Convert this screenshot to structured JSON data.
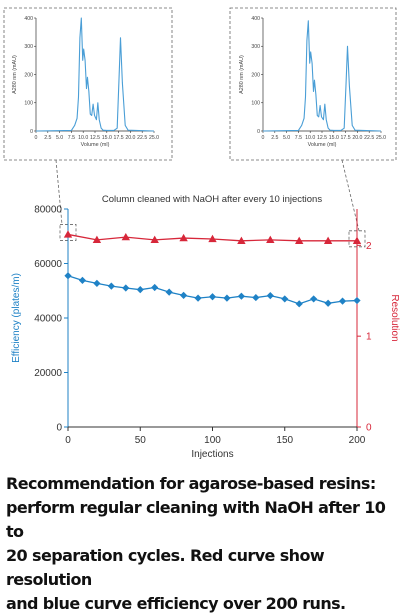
{
  "chart_data": [
    {
      "type": "line",
      "title": "",
      "xlabel": "Volume (ml)",
      "ylabel": "A280 nm (mAU)",
      "xlim": [
        0,
        25
      ],
      "ylim": [
        0,
        400
      ],
      "x_ticks": [
        "0",
        "2.5",
        "5.0",
        "7.5",
        "10.0",
        "12.5",
        "15.0",
        "17.5",
        "20.0",
        "22.5",
        "25.0"
      ],
      "y_ticks": [
        "0",
        "100",
        "200",
        "300",
        "400"
      ],
      "series": [
        {
          "color": "#4a9ed6",
          "x": [
            0,
            7.5,
            8.2,
            8.7,
            9.0,
            9.3,
            9.6,
            9.9,
            10.1,
            10.4,
            10.7,
            10.9,
            11.2,
            11.5,
            11.8,
            12.1,
            12.4,
            12.8,
            13.1,
            13.4,
            13.8,
            14.2,
            15.0,
            16.5,
            17.2,
            17.6,
            17.9,
            18.3,
            18.9,
            19.5,
            25
          ],
          "y": [
            0,
            2,
            20,
            45,
            120,
            330,
            400,
            250,
            290,
            250,
            150,
            190,
            140,
            60,
            55,
            95,
            55,
            40,
            100,
            40,
            10,
            3,
            2,
            2,
            10,
            190,
            330,
            170,
            20,
            3,
            0
          ]
        }
      ]
    },
    {
      "type": "line",
      "title": "",
      "xlabel": "Volume (ml)",
      "ylabel": "A280 nm (mAU)",
      "xlim": [
        0,
        25
      ],
      "ylim": [
        0,
        400
      ],
      "x_ticks": [
        "0",
        "2.5",
        "5.0",
        "7.5",
        "10.0",
        "12.5",
        "15.0",
        "17.5",
        "20.0",
        "22.5",
        "25.0"
      ],
      "y_ticks": [
        "0",
        "100",
        "200",
        "300",
        "400"
      ],
      "series": [
        {
          "color": "#4a9ed6",
          "x": [
            0,
            7.5,
            8.2,
            8.7,
            9.0,
            9.3,
            9.6,
            9.9,
            10.1,
            10.4,
            10.7,
            10.9,
            11.2,
            11.5,
            11.8,
            12.1,
            12.4,
            12.8,
            13.1,
            13.4,
            13.8,
            14.2,
            15.0,
            16.5,
            17.2,
            17.6,
            17.9,
            18.3,
            18.9,
            19.5,
            25
          ],
          "y": [
            0,
            2,
            20,
            45,
            120,
            320,
            390,
            240,
            280,
            240,
            140,
            180,
            130,
            55,
            50,
            90,
            50,
            40,
            95,
            40,
            10,
            3,
            2,
            2,
            10,
            170,
            300,
            160,
            20,
            3,
            0
          ]
        }
      ]
    },
    {
      "type": "line",
      "title": "Column cleaned with NaOH after every 10 injections",
      "xlabel": "Injections",
      "ylabel": "Efficiency  (plates/m)",
      "y2label": "Resolution",
      "xlim": [
        0,
        200
      ],
      "ylim": [
        0,
        80000
      ],
      "y2lim": [
        0,
        2.4
      ],
      "x_ticks": [
        "0",
        "50",
        "100",
        "150",
        "200"
      ],
      "y_ticks": [
        "0",
        "20000",
        "40000",
        "60000",
        "80000"
      ],
      "y2_ticks": [
        "0",
        "1",
        "2"
      ],
      "grid": false,
      "series": [
        {
          "name": "Efficiency",
          "axis": "left",
          "color": "#1f82c6",
          "marker": "diamond",
          "x": [
            0,
            10,
            20,
            30,
            40,
            50,
            60,
            70,
            80,
            90,
            100,
            110,
            120,
            130,
            140,
            150,
            160,
            170,
            180,
            190,
            200
          ],
          "y": [
            55500,
            53800,
            52700,
            51700,
            51000,
            50400,
            51200,
            49500,
            48300,
            47300,
            47800,
            47300,
            48000,
            47500,
            48200,
            47000,
            45200,
            47000,
            45400,
            46200,
            46400
          ]
        },
        {
          "name": "Resolution",
          "axis": "right",
          "color": "#d7273a",
          "marker": "triangle",
          "x": [
            0,
            20,
            40,
            60,
            80,
            100,
            120,
            140,
            160,
            180,
            200
          ],
          "y": [
            2.12,
            2.06,
            2.09,
            2.06,
            2.08,
            2.07,
            2.05,
            2.06,
            2.05,
            2.05,
            2.05
          ]
        }
      ]
    }
  ],
  "caption": [
    "Recommendation for agarose-based resins:",
    "perform regular cleaning with NaOH after 10 to",
    "20 separation cycles. Red curve show resolution",
    "and blue curve efficiency over 200 runs."
  ],
  "colors": {
    "axis_left": "#1f82c6",
    "axis_right": "#d7273a",
    "inset": "#4a9ed6",
    "gray": "#666666"
  }
}
